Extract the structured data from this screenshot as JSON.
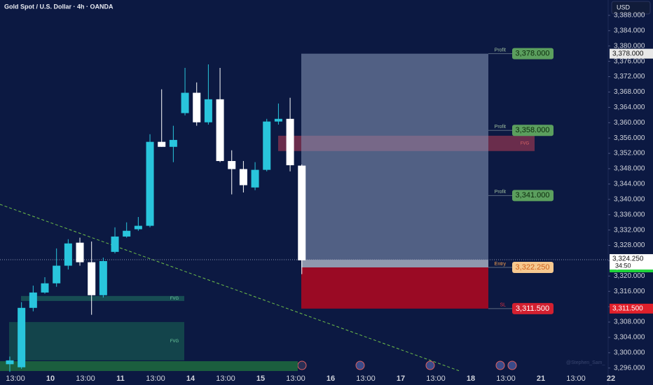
{
  "header": {
    "title": "Gold Spot / U.S. Dollar · 4h · OANDA",
    "currency": "USD"
  },
  "chart_data": {
    "type": "candlestick",
    "up_color": "#29c5dc",
    "down_color": "#ffffff",
    "open": [
      3297,
      3296.2,
      3311.7,
      3315.7,
      3318.1,
      3322.7,
      3328.7,
      3323.6,
      3315.0,
      3326.3,
      3330.3,
      3332.2,
      3333.1,
      3355.0,
      3353.7,
      3362.5,
      3367.8,
      3360.1,
      3366.1,
      3350.0,
      3347.9,
      3343.1,
      3347.7,
      3360.3,
      3361.0,
      3348.8
    ],
    "high": [
      3299,
      3313.2,
      3317.5,
      3319.7,
      3327.2,
      3329.6,
      3330.0,
      3329.0,
      3324.8,
      3332.7,
      3334.0,
      3335.4,
      3357.0,
      3368.7,
      3359.2,
      3374.3,
      3370.5,
      3375.2,
      3374.3,
      3352.8,
      3350.0,
      3349.7,
      3361.0,
      3365.0,
      3366.5,
      3349.1
    ],
    "low": [
      3295,
      3295.8,
      3310.8,
      3315.4,
      3317.2,
      3321.7,
      3322.7,
      3309.9,
      3314.4,
      3325.9,
      3330.0,
      3331.8,
      3332.7,
      3353.7,
      3349.7,
      3361.9,
      3359.2,
      3359.5,
      3349.7,
      3341.3,
      3341.8,
      3342.4,
      3347.3,
      3359.5,
      3347.3,
      3320.5
    ],
    "close": [
      3298,
      3311.7,
      3315.7,
      3318.1,
      3322.7,
      3328.5,
      3323.6,
      3315.0,
      3323.9,
      3330.3,
      3331.8,
      3333.1,
      3355.0,
      3353.7,
      3355.5,
      3367.8,
      3360.1,
      3366.1,
      3350.0,
      3347.9,
      3343.7,
      3347.7,
      3360.3,
      3361.0,
      3348.9,
      3324.1
    ],
    "x_axis_labels": [
      "13:00",
      "10",
      "13:00",
      "11",
      "13:00",
      "14",
      "13:00",
      "15",
      "13:00",
      "16",
      "13:00",
      "17",
      "13:00",
      "18",
      "13:00",
      "21",
      "13:00",
      "22"
    ],
    "ylim": [
      3294.5,
      3392
    ],
    "yticks": [
      {
        "value": 3296,
        "label": "3,296.000"
      },
      {
        "value": 3300,
        "label": "3,300.000"
      },
      {
        "value": 3304,
        "label": "3,304.000"
      },
      {
        "value": 3308,
        "label": "3,308.000"
      },
      {
        "value": 3312,
        "label": "3,312.000"
      },
      {
        "value": 3316,
        "label": "3,316.000"
      },
      {
        "value": 3320,
        "label": "3,320.000"
      },
      {
        "value": 3324,
        "label": "3,324.000"
      },
      {
        "value": 3328,
        "label": "3,328.000"
      },
      {
        "value": 3332,
        "label": "3,332.000"
      },
      {
        "value": 3336,
        "label": "3,336.000"
      },
      {
        "value": 3340,
        "label": "3,340.000"
      },
      {
        "value": 3344,
        "label": "3,344.000"
      },
      {
        "value": 3348,
        "label": "3,348.000"
      },
      {
        "value": 3352,
        "label": "3,352.000"
      },
      {
        "value": 3356,
        "label": "3,356.000"
      },
      {
        "value": 3360,
        "label": "3,360.000"
      },
      {
        "value": 3364,
        "label": "3,364.000"
      },
      {
        "value": 3368,
        "label": "3,368.000"
      },
      {
        "value": 3372,
        "label": "3,372.000"
      },
      {
        "value": 3376,
        "label": "3,376.000"
      },
      {
        "value": 3380,
        "label": "3,380.000"
      },
      {
        "value": 3384,
        "label": "3,384.000"
      },
      {
        "value": 3388,
        "label": "3,388.000"
      }
    ],
    "zones": [
      {
        "label": "FVG",
        "range": [
          3352.6,
          3356.6
        ],
        "color": "#8a3450"
      },
      {
        "label": "FVG",
        "range": [
          3313.5,
          3314.8
        ],
        "color": "#1b5e5a"
      },
      {
        "label": "FVG",
        "range": [
          3298.0,
          3308.0
        ],
        "color": "#15534f"
      }
    ],
    "trendline": {
      "start": 3338.7,
      "end": 3295.3,
      "color": "#6fbf4a"
    },
    "levels": [
      {
        "name": "Profit",
        "price": 3378,
        "price_label": "3,378.000",
        "color": "#5b9f5e"
      },
      {
        "name": "Profit",
        "price": 3358,
        "price_label": "3,358.000",
        "color": "#5b9f5e"
      },
      {
        "name": "Profit",
        "price": 3341,
        "price_label": "3,341.000",
        "color": "#5b9f5e"
      },
      {
        "name": "Entry",
        "price": 3322.25,
        "price_label": "3,322.250",
        "color": "#f6c88f"
      },
      {
        "name": "SL",
        "price": 3311.5,
        "price_label": "3,311.500",
        "color": "#d32030"
      }
    ],
    "current": {
      "price": 3324.25,
      "price_label": "3,324.250",
      "countdown": "34:50"
    },
    "axis_tags": [
      {
        "price": 3378,
        "label": "3,378.000",
        "color": "#e8e8e8"
      },
      {
        "price": 3322.25,
        "label": "3,322.250",
        "color": "#1fd33b"
      },
      {
        "price": 3311.5,
        "label": "3,311.500",
        "color": "#e0202b"
      }
    ],
    "watermark": "@Stephen_Sam_"
  }
}
